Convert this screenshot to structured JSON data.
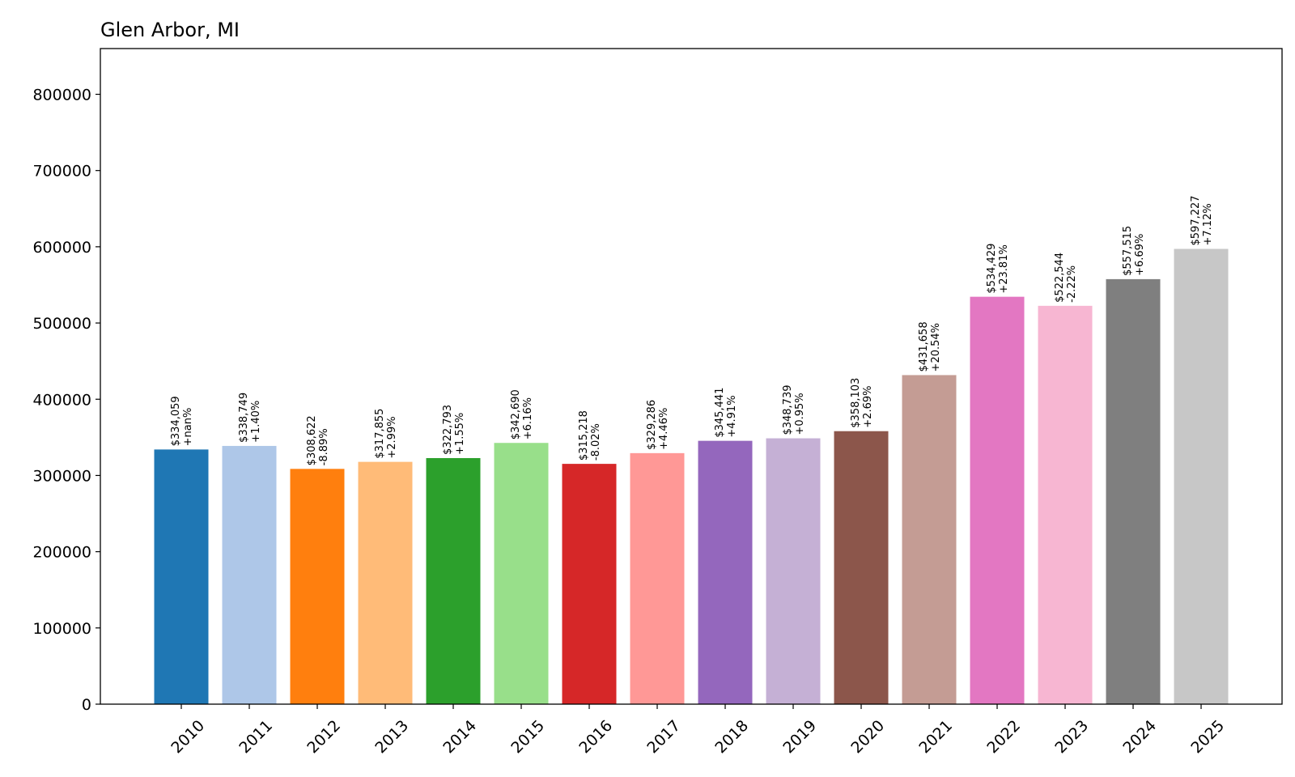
{
  "chart_data": {
    "type": "bar",
    "title": "Glen Arbor, MI",
    "xlabel": "",
    "ylabel": "",
    "ylim": [
      0,
      860000
    ],
    "yticks": [
      0,
      100000,
      200000,
      300000,
      400000,
      500000,
      600000,
      700000,
      800000
    ],
    "ytick_labels": [
      "0",
      "100000",
      "200000",
      "300000",
      "400000",
      "500000",
      "600000",
      "700000",
      "800000"
    ],
    "grid": false,
    "categories": [
      "2010",
      "2011",
      "2012",
      "2013",
      "2014",
      "2015",
      "2016",
      "2017",
      "2018",
      "2019",
      "2020",
      "2021",
      "2022",
      "2023",
      "2024",
      "2025"
    ],
    "values": [
      334059,
      338749,
      308622,
      317855,
      322793,
      342690,
      315218,
      329286,
      345441,
      348739,
      358103,
      431658,
      534429,
      522544,
      557515,
      597227
    ],
    "value_labels": [
      "$334,059",
      "$338,749",
      "$308,622",
      "$317,855",
      "$322,793",
      "$342,690",
      "$315,218",
      "$329,286",
      "$345,441",
      "$348,739",
      "$358,103",
      "$431,658",
      "$534,429",
      "$522,544",
      "$557,515",
      "$597,227"
    ],
    "change_labels": [
      "+nan%",
      "+1.40%",
      "-8.89%",
      "+2.99%",
      "+1.55%",
      "+6.16%",
      "-8.02%",
      "+4.46%",
      "+4.91%",
      "+0.95%",
      "+2.69%",
      "+20.54%",
      "+23.81%",
      "-2.22%",
      "+6.69%",
      "+7.12%"
    ],
    "colors": [
      "#1f77b4",
      "#aec7e8",
      "#ff7f0e",
      "#ffbb78",
      "#2ca02c",
      "#98df8a",
      "#d62728",
      "#ff9896",
      "#9467bd",
      "#c5b0d5",
      "#8c564b",
      "#c49c94",
      "#e377c2",
      "#f7b6d2",
      "#7f7f7f",
      "#c7c7c7"
    ]
  }
}
